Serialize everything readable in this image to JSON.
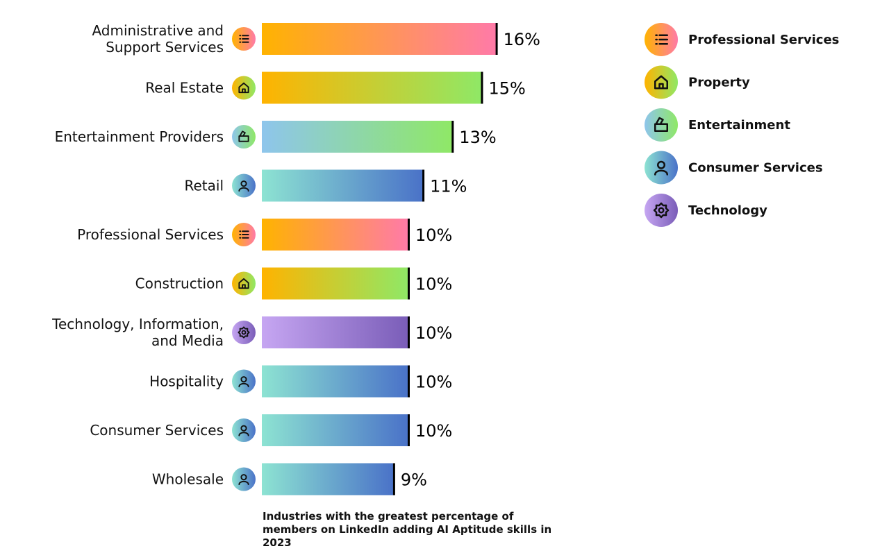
{
  "chart_data": {
    "type": "bar",
    "orientation": "horizontal",
    "title": "Industries with the greatest percentage of members on LinkedIn adding AI Aptitude skills in 2023",
    "value_suffix": "%",
    "categories": [
      {
        "label": "Administrative and\nSupport Services",
        "value": 16,
        "group": "professional"
      },
      {
        "label": "Real Estate",
        "value": 15,
        "group": "property"
      },
      {
        "label": "Entertainment Providers",
        "value": 13,
        "group": "entertainment"
      },
      {
        "label": "Retail",
        "value": 11,
        "group": "consumer"
      },
      {
        "label": "Professional Services",
        "value": 10,
        "group": "professional"
      },
      {
        "label": "Construction",
        "value": 10,
        "group": "property"
      },
      {
        "label": "Technology, Information,\nand Media",
        "value": 10,
        "group": "technology"
      },
      {
        "label": "Hospitality",
        "value": 10,
        "group": "consumer"
      },
      {
        "label": "Consumer Services",
        "value": 10,
        "group": "consumer"
      },
      {
        "label": "Wholesale",
        "value": 9,
        "group": "consumer"
      }
    ],
    "legend": [
      {
        "key": "professional",
        "label": "Professional Services",
        "icon": "list-icon",
        "colors": [
          "#FFB300",
          "#FF7AA8"
        ]
      },
      {
        "key": "property",
        "label": "Property",
        "icon": "house-icon",
        "colors": [
          "#FFB300",
          "#8FE866"
        ]
      },
      {
        "key": "entertainment",
        "label": "Entertainment",
        "icon": "clapperboard-icon",
        "colors": [
          "#8EC5EC",
          "#8FE866"
        ]
      },
      {
        "key": "consumer",
        "label": "Consumer Services",
        "icon": "person-icon",
        "colors": [
          "#8DE3D2",
          "#4A72C8"
        ]
      },
      {
        "key": "technology",
        "label": "Technology",
        "icon": "gear-icon",
        "colors": [
          "#C6A6F2",
          "#7A5DB8"
        ]
      }
    ],
    "legend_position": "top-right"
  }
}
